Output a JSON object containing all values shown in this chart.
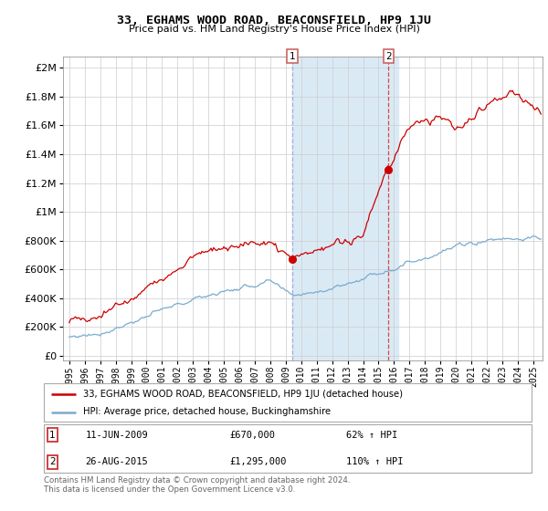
{
  "title": "33, EGHAMS WOOD ROAD, BEACONSFIELD, HP9 1JU",
  "subtitle": "Price paid vs. HM Land Registry's House Price Index (HPI)",
  "red_label": "33, EGHAMS WOOD ROAD, BEACONSFIELD, HP9 1JU (detached house)",
  "blue_label": "HPI: Average price, detached house, Buckinghamshire",
  "annotation1_date": "11-JUN-2009",
  "annotation1_price": "£670,000",
  "annotation1_hpi": "62% ↑ HPI",
  "annotation2_date": "26-AUG-2015",
  "annotation2_price": "£1,295,000",
  "annotation2_hpi": "110% ↑ HPI",
  "footer": "Contains HM Land Registry data © Crown copyright and database right 2024.\nThis data is licensed under the Open Government Licence v3.0.",
  "red_color": "#cc0000",
  "blue_color": "#7aabcf",
  "shaded_color": "#daeaf5",
  "vline1_color": "#aaaadd",
  "vline2_color": "#dd4444",
  "marker1_year": 2009.44,
  "marker1_val": 670000,
  "marker2_year": 2015.65,
  "marker2_val": 1295000,
  "shade_start": 2009.44,
  "shade_end": 2016.3,
  "ylim_min": 0,
  "ylim_max": 2000000,
  "yticks": [
    0,
    200000,
    400000,
    600000,
    800000,
    1000000,
    1200000,
    1400000,
    1600000,
    1800000,
    2000000
  ],
  "xlim_start": 1994.6,
  "xlim_end": 2025.6
}
